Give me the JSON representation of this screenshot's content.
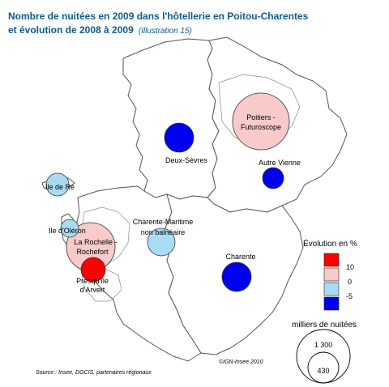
{
  "title": {
    "line1": "Nombre de nuitées en 2009 dans l'hôtellerie en Poitou-Charentes",
    "line2": "et évolution de 2008 à 2009",
    "illustration": "(Illustration 15)"
  },
  "zones": [
    {
      "label": "Poitiers -",
      "label2": "Futuroscope",
      "evolution_class": "0 to 10"
    },
    {
      "label": "Deux-Sèvres",
      "evolution_class": "< -5"
    },
    {
      "label": "Autre Vienne",
      "evolution_class": "< -5"
    },
    {
      "label": "Ile de Ré",
      "evolution_class": "-5 to 0"
    },
    {
      "label": "Ile d'Oléron",
      "evolution_class": "-5 to 0"
    },
    {
      "label": "La Rochelle -",
      "label2": "Rochefort",
      "evolution_class": "0 to 10"
    },
    {
      "label": "Presqu'île",
      "label2": "d'Arvert",
      "evolution_class": "> 10"
    },
    {
      "label": "Charente-Maritime",
      "label2": "non balnéaire",
      "evolution_class": "-5 to 0"
    },
    {
      "label": "Charente",
      "evolution_class": "< -5"
    }
  ],
  "legend": {
    "evolution_title": "Évolution en %",
    "ticks": [
      "10",
      "0",
      "-5"
    ],
    "colors": {
      "gt10": "#ff0000",
      "0to10": "#f8caca",
      "m5to0": "#a8dcf3",
      "ltm5": "#0000ee"
    },
    "size_title": "milliers de nuitées",
    "size_values": [
      "1 300",
      "430"
    ]
  },
  "footer": {
    "source": "Source : Insee, DGCIS, partenaires régionaux",
    "copyright": "©IGN-Insee 2010"
  }
}
